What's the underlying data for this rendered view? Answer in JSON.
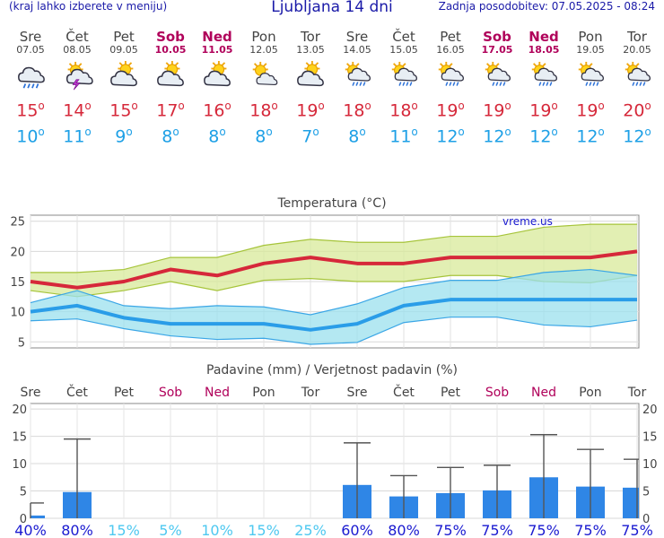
{
  "header": {
    "menu_hint": "(kraj lahko izberete v meniju)",
    "title": "Ljubljana 14 dni",
    "updated": "Zadnja posodobitev: 07.05.2025 - 08:24"
  },
  "days": [
    {
      "name": "Sre",
      "date": "07.05",
      "icon": "rain-cloud-icon",
      "max": "15",
      "min": "10",
      "weekend": false
    },
    {
      "name": "Čet",
      "date": "08.05",
      "icon": "thunder-sun-icon",
      "max": "14",
      "min": "11",
      "weekend": false
    },
    {
      "name": "Pet",
      "date": "09.05",
      "icon": "partly-cloudy-icon",
      "max": "15",
      "min": "9",
      "weekend": false
    },
    {
      "name": "Sob",
      "date": "10.05",
      "icon": "partly-cloudy-icon",
      "max": "17",
      "min": "8",
      "weekend": true
    },
    {
      "name": "Ned",
      "date": "11.05",
      "icon": "partly-cloudy-icon",
      "max": "16",
      "min": "8",
      "weekend": true
    },
    {
      "name": "Pon",
      "date": "12.05",
      "icon": "sun-cloud-icon",
      "max": "18",
      "min": "8",
      "weekend": false
    },
    {
      "name": "Tor",
      "date": "13.05",
      "icon": "partly-cloudy-icon",
      "max": "19",
      "min": "7",
      "weekend": false
    },
    {
      "name": "Sre",
      "date": "14.05",
      "icon": "sun-rain-icon",
      "max": "18",
      "min": "8",
      "weekend": false
    },
    {
      "name": "Čet",
      "date": "15.05",
      "icon": "sun-rain-icon",
      "max": "18",
      "min": "11",
      "weekend": false
    },
    {
      "name": "Pet",
      "date": "16.05",
      "icon": "sun-rain-icon",
      "max": "19",
      "min": "12",
      "weekend": false
    },
    {
      "name": "Sob",
      "date": "17.05",
      "icon": "sun-rain-icon",
      "max": "19",
      "min": "12",
      "weekend": true
    },
    {
      "name": "Ned",
      "date": "18.05",
      "icon": "sun-rain-icon",
      "max": "19",
      "min": "12",
      "weekend": true
    },
    {
      "name": "Pon",
      "date": "19.05",
      "icon": "sun-rain-icon",
      "max": "19",
      "min": "12",
      "weekend": false
    },
    {
      "name": "Tor",
      "date": "20.05",
      "icon": "sun-rain-icon",
      "max": "20",
      "min": "12",
      "weekend": false
    }
  ],
  "colors": {
    "max": "#d6283a",
    "min": "#1ea0e6",
    "bar": "#2f86e6",
    "weekend": "#b0005a",
    "band_max": "#d8ea9a",
    "band_min": "#9be0ee"
  },
  "chart_data": [
    {
      "type": "line",
      "title": "Temperatura (°C)",
      "watermark": "vreme.us",
      "x": [
        "Sre",
        "Čet",
        "Pet",
        "Sob",
        "Ned",
        "Pon",
        "Tor",
        "Sre",
        "Čet",
        "Pet",
        "Sob",
        "Ned",
        "Pon",
        "Tor"
      ],
      "ylim": [
        4,
        26
      ],
      "yticks": [
        5,
        10,
        15,
        20,
        25
      ],
      "series": [
        {
          "values": [
            15,
            14,
            15,
            17,
            16,
            18,
            19,
            18,
            18,
            19,
            19,
            19,
            19,
            20
          ],
          "band_low": [
            13.5,
            12.5,
            13.5,
            15,
            13.5,
            15.2,
            15.5,
            15,
            15,
            16,
            16,
            15,
            14.8,
            16
          ],
          "band_high": [
            16.5,
            16.5,
            17,
            19,
            19,
            21,
            22,
            21.5,
            21.5,
            22.5,
            22.5,
            24,
            24.5,
            24.5
          ]
        },
        {
          "values": [
            10,
            11,
            9,
            8,
            8,
            8,
            7,
            8,
            11,
            12,
            12,
            12,
            12,
            12
          ],
          "band_low": [
            8.5,
            8.8,
            7.2,
            6,
            5.4,
            5.6,
            4.6,
            4.9,
            8.2,
            9.1,
            9.1,
            7.8,
            7.5,
            8.6
          ],
          "band_high": [
            11.5,
            13.5,
            11,
            10.5,
            11,
            10.8,
            9.5,
            11.3,
            14,
            15.2,
            15.2,
            16.5,
            17,
            16
          ]
        }
      ]
    },
    {
      "type": "bar",
      "title": "Padavine (mm) / Verjetnost padavin (%)",
      "categories": [
        "Sre",
        "Čet",
        "Pet",
        "Sob",
        "Ned",
        "Pon",
        "Tor",
        "Sre",
        "Čet",
        "Pet",
        "Sob",
        "Ned",
        "Pon",
        "Tor"
      ],
      "values": [
        0.5,
        4.8,
        0,
        0,
        0,
        0,
        0,
        6.1,
        4,
        4.6,
        5.1,
        7.5,
        5.8,
        5.6
      ],
      "error_high": [
        2.8,
        14.5,
        0,
        0,
        0,
        0,
        0,
        13.8,
        7.8,
        9.3,
        9.7,
        15.3,
        12.6,
        10.8
      ],
      "probability": [
        "40%",
        "80%",
        "15%",
        "5%",
        "10%",
        "15%",
        "25%",
        "60%",
        "80%",
        "75%",
        "75%",
        "75%",
        "75%",
        "75%"
      ],
      "ylim": [
        0,
        21
      ],
      "yticks": [
        0,
        5,
        10,
        15,
        20
      ]
    }
  ]
}
